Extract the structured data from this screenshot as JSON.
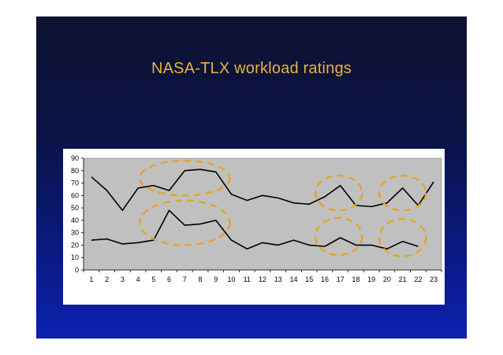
{
  "slide": {
    "title": "NASA-TLX workload ratings",
    "background_top": "#0d1230",
    "background_bottom": "#0b22b0",
    "title_color": "#e6b43c"
  },
  "chart_data": {
    "type": "line",
    "x": [
      1,
      2,
      3,
      4,
      5,
      6,
      7,
      8,
      9,
      10,
      11,
      12,
      13,
      14,
      15,
      16,
      17,
      18,
      19,
      20,
      21,
      22,
      23
    ],
    "series": [
      {
        "values": [
          75,
          64,
          48,
          66,
          68,
          64,
          80,
          81,
          79,
          61,
          56,
          60,
          58,
          54,
          53,
          59,
          68,
          52,
          51,
          54,
          66,
          52,
          71
        ],
        "color": "#000000"
      },
      {
        "values": [
          24,
          25,
          21,
          22,
          24,
          48,
          36,
          37,
          40,
          24,
          17,
          22,
          20,
          24,
          20,
          19,
          26,
          20,
          20,
          17,
          23,
          19,
          null
        ],
        "color": "#000000"
      }
    ],
    "ylim": [
      0,
      90
    ],
    "yticks": [
      0,
      10,
      20,
      30,
      40,
      50,
      60,
      70,
      80,
      90
    ],
    "plot_background": "#c0c0c0",
    "grid": false,
    "annotations": [
      {
        "shape": "dashed-ellipse",
        "color": "#e0a52c",
        "x_center": 7.0,
        "x_radius": 2.9,
        "y_center": 74,
        "y_radius": 14
      },
      {
        "shape": "dashed-ellipse",
        "color": "#e0a52c",
        "x_center": 7.0,
        "x_radius": 2.9,
        "y_center": 38,
        "y_radius": 18
      },
      {
        "shape": "dashed-ellipse",
        "color": "#e0a52c",
        "x_center": 16.9,
        "x_radius": 1.5,
        "y_center": 62,
        "y_radius": 14
      },
      {
        "shape": "dashed-ellipse",
        "color": "#e0a52c",
        "x_center": 16.9,
        "x_radius": 1.5,
        "y_center": 27,
        "y_radius": 15
      },
      {
        "shape": "dashed-ellipse",
        "color": "#e0a52c",
        "x_center": 21.0,
        "x_radius": 1.5,
        "y_center": 62,
        "y_radius": 14
      },
      {
        "shape": "dashed-ellipse",
        "color": "#e0a52c",
        "x_center": 21.0,
        "x_radius": 1.5,
        "y_center": 26,
        "y_radius": 15
      }
    ]
  }
}
